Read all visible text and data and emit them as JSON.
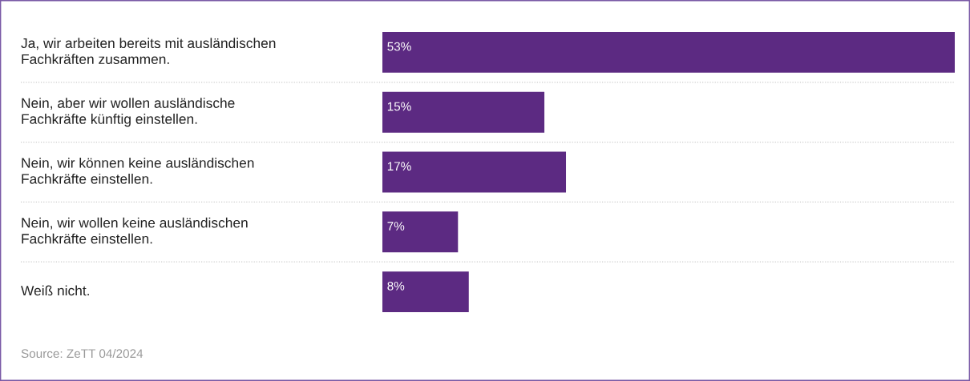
{
  "chart_data": {
    "type": "bar",
    "orientation": "horizontal",
    "categories": [
      "Ja, wir arbeiten bereits mit ausländischen\nFachkräften zusammen.",
      "Nein, aber wir wollen ausländische\nFachkräfte künftig einstellen.",
      "Nein, wir können keine ausländischen\nFachkräfte einstellen.",
      "Nein, wir wollen keine ausländischen\nFachkräfte einstellen.",
      "Weiß nicht."
    ],
    "values": [
      53,
      15,
      17,
      7,
      8
    ],
    "value_labels": [
      "53%",
      "15%",
      "17%",
      "7%",
      "8%"
    ],
    "color": "#5c2a82",
    "legend": false,
    "annotations": [
      "Source: ZeTT 04/2024"
    ]
  }
}
